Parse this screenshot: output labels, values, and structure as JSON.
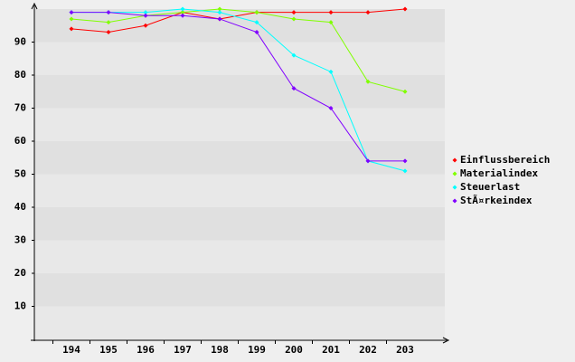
{
  "chart_data": {
    "type": "line",
    "categories": [
      "194",
      "195",
      "196",
      "197",
      "198",
      "199",
      "200",
      "201",
      "202",
      "203"
    ],
    "series": [
      {
        "name": "Einflussbereich",
        "color": "#ff0000",
        "values": [
          94,
          93,
          95,
          99,
          97,
          99,
          99,
          99,
          99,
          100
        ]
      },
      {
        "name": "Materialindex",
        "color": "#80ff00",
        "values": [
          97,
          96,
          98,
          99,
          100,
          99,
          97,
          96,
          78,
          75
        ]
      },
      {
        "name": "Steuerlast",
        "color": "#00ffff",
        "values": [
          99,
          99,
          99,
          100,
          99,
          96,
          86,
          81,
          54,
          51
        ]
      },
      {
        "name": "StÃ¤rkeindex",
        "color": "#8000ff",
        "values": [
          99,
          99,
          98,
          98,
          97,
          93,
          76,
          70,
          54,
          54
        ]
      }
    ],
    "ylim": [
      0,
      100
    ],
    "yticks": [
      10,
      20,
      30,
      40,
      50,
      60,
      70,
      80,
      90
    ],
    "legend": "right"
  }
}
